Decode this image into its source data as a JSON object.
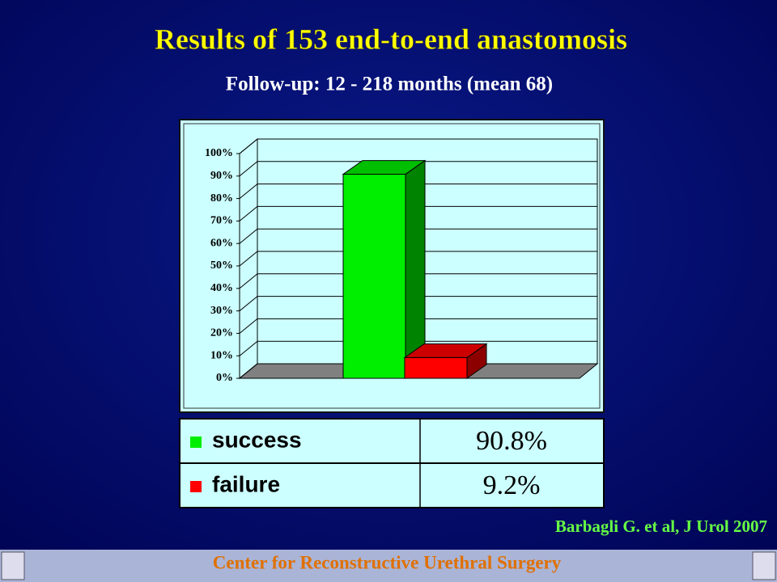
{
  "chart_data": {
    "type": "bar3d",
    "title": "Results of 153 end-to-end anastomosis",
    "subtitle": "Follow-up: 12 - 218 months (mean 68)",
    "categories": [
      "success",
      "failure"
    ],
    "values": [
      90.8,
      9.2
    ],
    "value_labels": [
      "90.8%",
      "9.2%"
    ],
    "colors": [
      "#00ee00",
      "#ff0000"
    ],
    "ylim": [
      0,
      100
    ],
    "yticks": [
      {
        "value": 0,
        "label": "0%"
      },
      {
        "value": 10,
        "label": "10%"
      },
      {
        "value": 20,
        "label": "20%"
      },
      {
        "value": 30,
        "label": "30%"
      },
      {
        "value": 40,
        "label": "40%"
      },
      {
        "value": 50,
        "label": "50%"
      },
      {
        "value": 60,
        "label": "60%"
      },
      {
        "value": 70,
        "label": "70%"
      },
      {
        "value": 80,
        "label": "80%"
      },
      {
        "value": 90,
        "label": "90%"
      },
      {
        "value": 100,
        "label": "100%"
      }
    ],
    "grid": true
  },
  "citation": "Barbagli G. et al, J Urol 2007",
  "footer": "Center for Reconstructive Urethral Surgery"
}
